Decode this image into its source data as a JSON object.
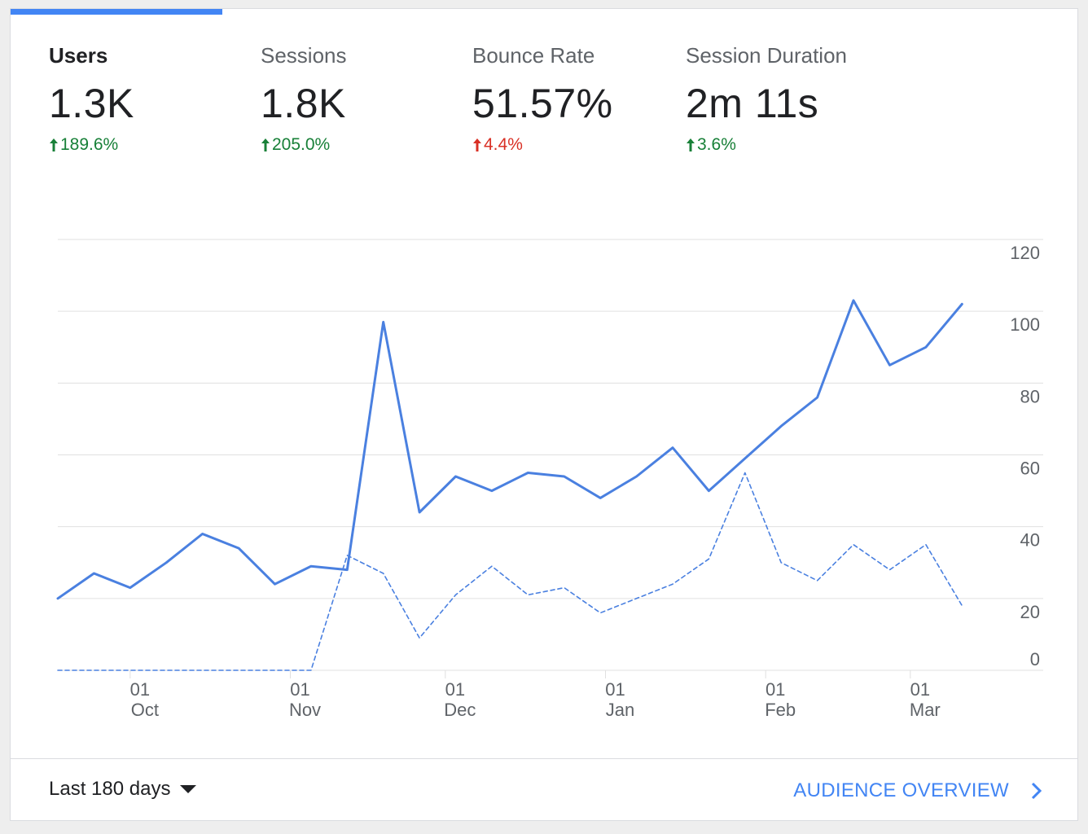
{
  "metrics": [
    {
      "label": "Users",
      "value": "1.3K",
      "change": "189.6%",
      "direction": "up",
      "status": "good",
      "active": true
    },
    {
      "label": "Sessions",
      "value": "1.8K",
      "change": "205.0%",
      "direction": "up",
      "status": "good",
      "active": false
    },
    {
      "label": "Bounce Rate",
      "value": "51.57%",
      "change": "4.4%",
      "direction": "up",
      "status": "bad",
      "active": false
    },
    {
      "label": "Session Duration",
      "value": "2m 11s",
      "change": "3.6%",
      "direction": "up",
      "status": "good",
      "active": false
    }
  ],
  "colors": {
    "accent": "#4285f4",
    "line": "#4a80e0",
    "good": "#188038",
    "bad": "#d93025",
    "grid": "#e0e0e0",
    "text": "#202124",
    "muted": "#5f6368"
  },
  "chart_data": {
    "type": "line",
    "y_ticks": [
      0,
      20,
      40,
      60,
      80,
      100,
      120
    ],
    "ylim": [
      0,
      120
    ],
    "x_range": [
      "2018-09-17",
      "2019-03-16"
    ],
    "x_ticks": [
      {
        "date": "2018-10-01",
        "day": "01",
        "month": "Oct"
      },
      {
        "date": "2018-11-01",
        "day": "01",
        "month": "Nov"
      },
      {
        "date": "2018-12-01",
        "day": "01",
        "month": "Dec"
      },
      {
        "date": "2019-01-01",
        "day": "01",
        "month": "Jan"
      },
      {
        "date": "2019-02-01",
        "day": "01",
        "month": "Feb"
      },
      {
        "date": "2019-03-01",
        "day": "01",
        "month": "Mar"
      }
    ],
    "series": [
      {
        "style": "solid",
        "points": [
          {
            "x": "2018-09-17",
            "y": 20
          },
          {
            "x": "2018-09-24",
            "y": 27
          },
          {
            "x": "2018-10-01",
            "y": 23
          },
          {
            "x": "2018-10-08",
            "y": 30
          },
          {
            "x": "2018-10-15",
            "y": 38
          },
          {
            "x": "2018-10-22",
            "y": 34
          },
          {
            "x": "2018-10-29",
            "y": 24
          },
          {
            "x": "2018-11-05",
            "y": 29
          },
          {
            "x": "2018-11-12",
            "y": 28
          },
          {
            "x": "2018-11-19",
            "y": 97
          },
          {
            "x": "2018-11-26",
            "y": 44
          },
          {
            "x": "2018-12-03",
            "y": 54
          },
          {
            "x": "2018-12-10",
            "y": 50
          },
          {
            "x": "2018-12-17",
            "y": 55
          },
          {
            "x": "2018-12-24",
            "y": 54
          },
          {
            "x": "2018-12-31",
            "y": 48
          },
          {
            "x": "2019-01-07",
            "y": 54
          },
          {
            "x": "2019-01-14",
            "y": 62
          },
          {
            "x": "2019-01-21",
            "y": 50
          },
          {
            "x": "2019-01-28",
            "y": 59
          },
          {
            "x": "2019-02-04",
            "y": 68
          },
          {
            "x": "2019-02-11",
            "y": 76
          },
          {
            "x": "2019-02-18",
            "y": 103
          },
          {
            "x": "2019-02-25",
            "y": 85
          },
          {
            "x": "2019-03-04",
            "y": 90
          },
          {
            "x": "2019-03-11",
            "y": 102
          }
        ]
      },
      {
        "style": "dashed",
        "points": [
          {
            "x": "2018-09-17",
            "y": 0
          },
          {
            "x": "2018-11-05",
            "y": 0
          },
          {
            "x": "2018-11-12",
            "y": 32
          },
          {
            "x": "2018-11-19",
            "y": 27
          },
          {
            "x": "2018-11-26",
            "y": 9
          },
          {
            "x": "2018-12-03",
            "y": 21
          },
          {
            "x": "2018-12-10",
            "y": 29
          },
          {
            "x": "2018-12-17",
            "y": 21
          },
          {
            "x": "2018-12-24",
            "y": 23
          },
          {
            "x": "2018-12-31",
            "y": 16
          },
          {
            "x": "2019-01-07",
            "y": 20
          },
          {
            "x": "2019-01-14",
            "y": 24
          },
          {
            "x": "2019-01-21",
            "y": 31
          },
          {
            "x": "2019-01-28",
            "y": 55
          },
          {
            "x": "2019-02-04",
            "y": 30
          },
          {
            "x": "2019-02-11",
            "y": 25
          },
          {
            "x": "2019-02-18",
            "y": 35
          },
          {
            "x": "2019-02-25",
            "y": 28
          },
          {
            "x": "2019-03-04",
            "y": 35
          },
          {
            "x": "2019-03-11",
            "y": 18
          }
        ]
      }
    ]
  },
  "footer": {
    "date_range": "Last 180 days",
    "link_label": "AUDIENCE OVERVIEW"
  }
}
